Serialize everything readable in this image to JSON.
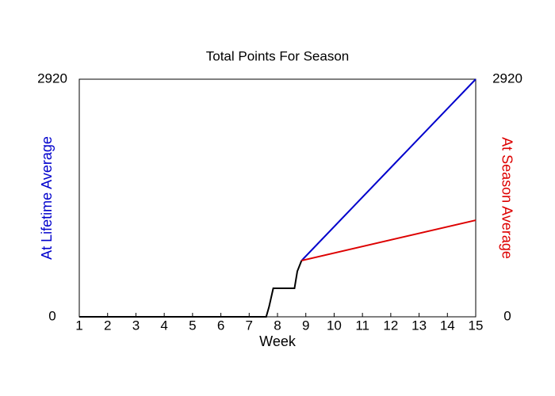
{
  "chart_data": {
    "type": "line",
    "title": "Total Points For Season",
    "xlabel": "Week",
    "ylabel": "At Lifetime Average",
    "y2label": "At Season Average",
    "ylabel_color": "#0000cc",
    "y2label_color": "#dd0000",
    "xlim": [
      1,
      15
    ],
    "xticks": [
      1,
      2,
      3,
      4,
      5,
      6,
      7,
      8,
      9,
      10,
      11,
      12,
      13,
      14,
      15
    ],
    "ylim": [
      0,
      2920
    ],
    "yticks": [
      0,
      2920
    ],
    "y2lim": [
      0,
      2920
    ],
    "y2ticks": [
      0,
      2920
    ],
    "grid": false,
    "series": [
      {
        "color": "#000000",
        "x": [
          1,
          7.6,
          7.7,
          7.85,
          8.6,
          8.7,
          8.85
        ],
        "values": [
          0,
          0,
          120,
          350,
          350,
          560,
          691
        ]
      },
      {
        "color": "#0000cc",
        "x": [
          8.85,
          15
        ],
        "values": [
          691,
          2920
        ]
      },
      {
        "color": "#dd0000",
        "axis": "y2",
        "x": [
          8.85,
          15
        ],
        "values": [
          691,
          1187
        ]
      }
    ]
  }
}
